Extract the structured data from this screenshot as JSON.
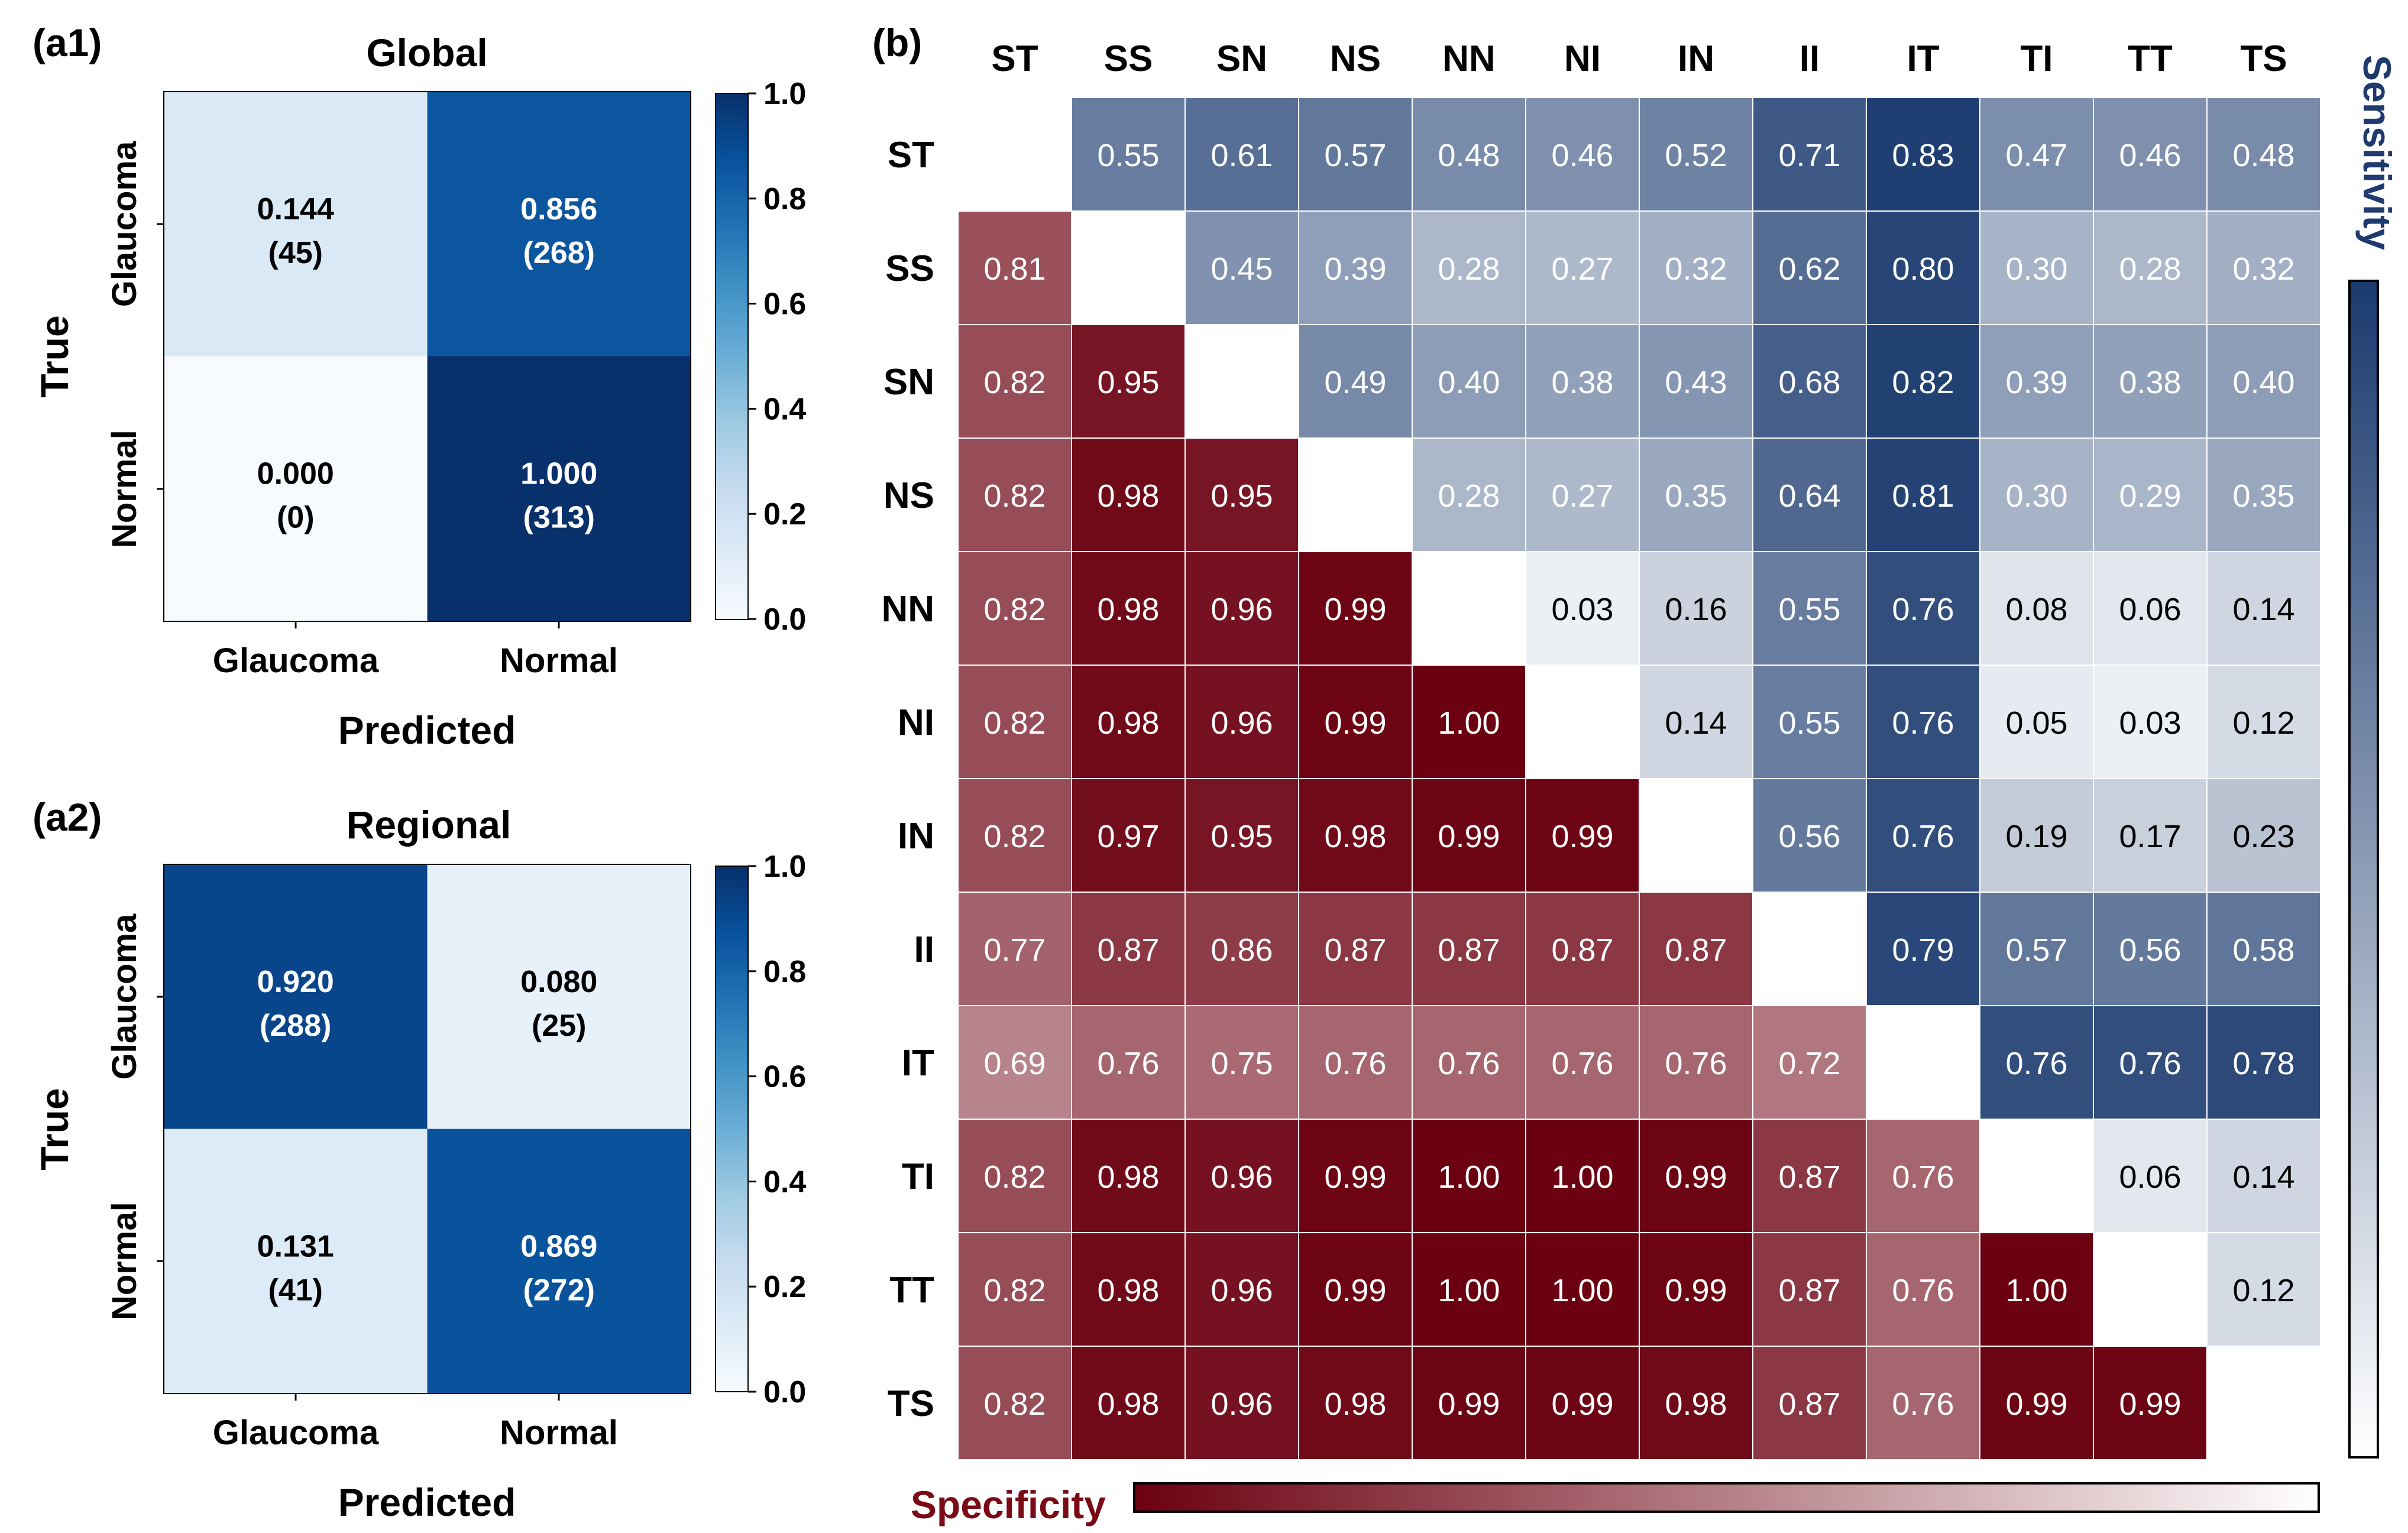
{
  "chart_data": [
    {
      "type": "heatmap",
      "panel_label": "(a1)",
      "title": "Global",
      "xlabel": "Predicted",
      "ylabel": "True",
      "x_categories": [
        "Glaucoma",
        "Normal"
      ],
      "y_categories": [
        "Glaucoma",
        "Normal"
      ],
      "values": [
        [
          0.144,
          0.856
        ],
        [
          0.0,
          1.0
        ]
      ],
      "value_labels": [
        [
          "0.144",
          "0.856"
        ],
        [
          "0.000",
          "1.000"
        ]
      ],
      "counts": [
        [
          "(45)",
          "(268)"
        ],
        [
          "(0)",
          "(313)"
        ]
      ],
      "colorbar": {
        "min": 0.0,
        "max": 1.0,
        "ticks": [
          "0.0",
          "0.2",
          "0.4",
          "0.6",
          "0.8",
          "1.0"
        ]
      }
    },
    {
      "type": "heatmap",
      "panel_label": "(a2)",
      "title": "Regional",
      "xlabel": "Predicted",
      "ylabel": "True",
      "x_categories": [
        "Glaucoma",
        "Normal"
      ],
      "y_categories": [
        "Glaucoma",
        "Normal"
      ],
      "values": [
        [
          0.92,
          0.08
        ],
        [
          0.131,
          0.869
        ]
      ],
      "value_labels": [
        [
          "0.920",
          "0.080"
        ],
        [
          "0.131",
          "0.869"
        ]
      ],
      "counts": [
        [
          "(288)",
          "(25)"
        ],
        [
          "(41)",
          "(272)"
        ]
      ],
      "colorbar": {
        "min": 0.0,
        "max": 1.0,
        "ticks": [
          "0.0",
          "0.2",
          "0.4",
          "0.6",
          "0.8",
          "1.0"
        ]
      }
    },
    {
      "type": "heatmap",
      "panel_label": "(b)",
      "categories": [
        "ST",
        "SS",
        "SN",
        "NS",
        "NN",
        "NI",
        "IN",
        "II",
        "IT",
        "TI",
        "TT",
        "TS"
      ],
      "upper_legend": "Sensitivity",
      "lower_legend": "Specificity",
      "matrix": [
        [
          null,
          0.55,
          0.61,
          0.57,
          0.48,
          0.46,
          0.52,
          0.71,
          0.83,
          0.47,
          0.46,
          0.48
        ],
        [
          0.81,
          null,
          0.45,
          0.39,
          0.28,
          0.27,
          0.32,
          0.62,
          0.8,
          0.3,
          0.28,
          0.32
        ],
        [
          0.82,
          0.95,
          null,
          0.49,
          0.4,
          0.38,
          0.43,
          0.68,
          0.82,
          0.39,
          0.38,
          0.4
        ],
        [
          0.82,
          0.98,
          0.95,
          null,
          0.28,
          0.27,
          0.35,
          0.64,
          0.81,
          0.3,
          0.29,
          0.35
        ],
        [
          0.82,
          0.98,
          0.96,
          0.99,
          null,
          0.03,
          0.16,
          0.55,
          0.76,
          0.08,
          0.06,
          0.14
        ],
        [
          0.82,
          0.98,
          0.96,
          0.99,
          1.0,
          null,
          0.14,
          0.55,
          0.76,
          0.05,
          0.03,
          0.12
        ],
        [
          0.82,
          0.97,
          0.95,
          0.98,
          0.99,
          0.99,
          null,
          0.56,
          0.76,
          0.19,
          0.17,
          0.23
        ],
        [
          0.77,
          0.87,
          0.86,
          0.87,
          0.87,
          0.87,
          0.87,
          null,
          0.79,
          0.57,
          0.56,
          0.58
        ],
        [
          0.69,
          0.76,
          0.75,
          0.76,
          0.76,
          0.76,
          0.76,
          0.72,
          null,
          0.76,
          0.76,
          0.78
        ],
        [
          0.82,
          0.98,
          0.96,
          0.99,
          1.0,
          1.0,
          0.99,
          0.87,
          0.76,
          null,
          0.06,
          0.14
        ],
        [
          0.82,
          0.98,
          0.96,
          0.99,
          1.0,
          1.0,
          0.99,
          0.87,
          0.76,
          1.0,
          null,
          0.12
        ],
        [
          0.82,
          0.98,
          0.96,
          0.98,
          0.99,
          0.99,
          0.98,
          0.87,
          0.76,
          0.99,
          0.99,
          null
        ]
      ],
      "cell_labels": [
        [
          "",
          "0.55",
          "0.61",
          "0.57",
          "0.48",
          "0.46",
          "0.52",
          "0.71",
          "0.83",
          "0.47",
          "0.46",
          "0.48"
        ],
        [
          "0.81",
          "",
          "0.45",
          "0.39",
          "0.28",
          "0.27",
          "0.32",
          "0.62",
          "0.80",
          "0.30",
          "0.28",
          "0.32"
        ],
        [
          "0.82",
          "0.95",
          "",
          "0.49",
          "0.40",
          "0.38",
          "0.43",
          "0.68",
          "0.82",
          "0.39",
          "0.38",
          "0.40"
        ],
        [
          "0.82",
          "0.98",
          "0.95",
          "",
          "0.28",
          "0.27",
          "0.35",
          "0.64",
          "0.81",
          "0.30",
          "0.29",
          "0.35"
        ],
        [
          "0.82",
          "0.98",
          "0.96",
          "0.99",
          "",
          "0.03",
          "0.16",
          "0.55",
          "0.76",
          "0.08",
          "0.06",
          "0.14"
        ],
        [
          "0.82",
          "0.98",
          "0.96",
          "0.99",
          "1.00",
          "",
          "0.14",
          "0.55",
          "0.76",
          "0.05",
          "0.03",
          "0.12"
        ],
        [
          "0.82",
          "0.97",
          "0.95",
          "0.98",
          "0.99",
          "0.99",
          "",
          "0.56",
          "0.76",
          "0.19",
          "0.17",
          "0.23"
        ],
        [
          "0.77",
          "0.87",
          "0.86",
          "0.87",
          "0.87",
          "0.87",
          "0.87",
          "",
          "0.79",
          "0.57",
          "0.56",
          "0.58"
        ],
        [
          "0.69",
          "0.76",
          "0.75",
          "0.76",
          "0.76",
          "0.76",
          "0.76",
          "0.72",
          "",
          "0.76",
          "0.76",
          "0.78"
        ],
        [
          "0.82",
          "0.98",
          "0.96",
          "0.99",
          "1.00",
          "1.00",
          "0.99",
          "0.87",
          "0.76",
          "",
          "0.06",
          "0.14"
        ],
        [
          "0.82",
          "0.98",
          "0.96",
          "0.99",
          "1.00",
          "1.00",
          "0.99",
          "0.87",
          "0.76",
          "1.00",
          "",
          "0.12"
        ],
        [
          "0.82",
          "0.98",
          "0.96",
          "0.98",
          "0.99",
          "0.99",
          "0.98",
          "0.87",
          "0.76",
          "0.99",
          "0.99",
          ""
        ]
      ]
    }
  ],
  "colors": {
    "blues_low": "#f7fbff",
    "blues_mid": "#6baed6",
    "blues_high": "#08306b",
    "sens_low": "#ffffff",
    "sens_high": "#1a3a6e",
    "spec_low": "#ffffff",
    "spec_high": "#6b0010",
    "sens_title": "#1f3a6e",
    "spec_title": "#7a0a14"
  }
}
